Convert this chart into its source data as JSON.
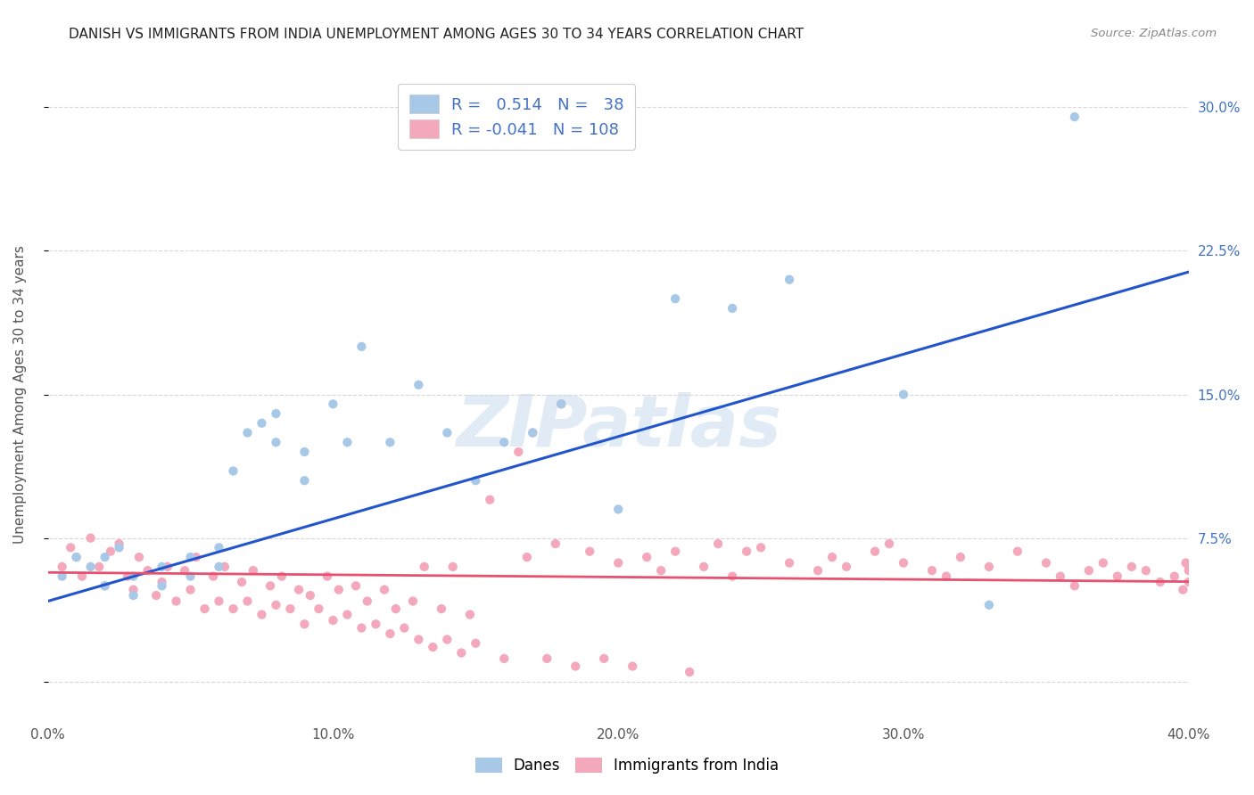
{
  "title": "DANISH VS IMMIGRANTS FROM INDIA UNEMPLOYMENT AMONG AGES 30 TO 34 YEARS CORRELATION CHART",
  "source": "Source: ZipAtlas.com",
  "ylabel": "Unemployment Among Ages 30 to 34 years",
  "xlim": [
    0.0,
    0.4
  ],
  "ylim": [
    -0.02,
    0.32
  ],
  "danes_color": "#a8c8e8",
  "india_color": "#f4a8bc",
  "danes_line_color": "#2255cc",
  "india_line_color": "#e85070",
  "danes_R": 0.514,
  "danes_N": 38,
  "india_R": -0.041,
  "india_N": 108,
  "watermark": "ZIPatlas",
  "background_color": "#ffffff",
  "grid_color": "#d8d8d8",
  "right_tick_color": "#4472c4",
  "danes_scatter_x": [
    0.005,
    0.01,
    0.015,
    0.02,
    0.02,
    0.025,
    0.03,
    0.03,
    0.04,
    0.04,
    0.05,
    0.05,
    0.06,
    0.06,
    0.065,
    0.07,
    0.075,
    0.08,
    0.08,
    0.09,
    0.09,
    0.1,
    0.105,
    0.11,
    0.12,
    0.13,
    0.14,
    0.15,
    0.16,
    0.17,
    0.18,
    0.2,
    0.22,
    0.24,
    0.26,
    0.3,
    0.33,
    0.36
  ],
  "danes_scatter_y": [
    0.055,
    0.065,
    0.06,
    0.05,
    0.065,
    0.07,
    0.045,
    0.055,
    0.06,
    0.05,
    0.055,
    0.065,
    0.07,
    0.06,
    0.11,
    0.13,
    0.135,
    0.125,
    0.14,
    0.12,
    0.105,
    0.145,
    0.125,
    0.175,
    0.125,
    0.155,
    0.13,
    0.105,
    0.125,
    0.13,
    0.145,
    0.09,
    0.2,
    0.195,
    0.21,
    0.15,
    0.04,
    0.295
  ],
  "india_scatter_x": [
    0.005,
    0.008,
    0.01,
    0.012,
    0.015,
    0.018,
    0.02,
    0.022,
    0.025,
    0.028,
    0.03,
    0.032,
    0.035,
    0.038,
    0.04,
    0.042,
    0.045,
    0.048,
    0.05,
    0.052,
    0.055,
    0.058,
    0.06,
    0.062,
    0.065,
    0.068,
    0.07,
    0.072,
    0.075,
    0.078,
    0.08,
    0.082,
    0.085,
    0.088,
    0.09,
    0.092,
    0.095,
    0.098,
    0.1,
    0.102,
    0.105,
    0.108,
    0.11,
    0.112,
    0.115,
    0.118,
    0.12,
    0.122,
    0.125,
    0.128,
    0.13,
    0.132,
    0.135,
    0.138,
    0.14,
    0.142,
    0.145,
    0.148,
    0.15,
    0.155,
    0.16,
    0.165,
    0.168,
    0.17,
    0.175,
    0.178,
    0.18,
    0.185,
    0.19,
    0.195,
    0.2,
    0.205,
    0.21,
    0.215,
    0.22,
    0.225,
    0.23,
    0.235,
    0.24,
    0.245,
    0.25,
    0.26,
    0.27,
    0.275,
    0.28,
    0.29,
    0.295,
    0.3,
    0.31,
    0.315,
    0.32,
    0.33,
    0.34,
    0.35,
    0.355,
    0.36,
    0.365,
    0.37,
    0.375,
    0.38,
    0.385,
    0.39,
    0.395,
    0.398,
    0.399,
    0.4,
    0.4,
    0.4
  ],
  "india_scatter_y": [
    0.06,
    0.07,
    0.065,
    0.055,
    0.075,
    0.06,
    0.05,
    0.068,
    0.072,
    0.055,
    0.048,
    0.065,
    0.058,
    0.045,
    0.052,
    0.06,
    0.042,
    0.058,
    0.048,
    0.065,
    0.038,
    0.055,
    0.042,
    0.06,
    0.038,
    0.052,
    0.042,
    0.058,
    0.035,
    0.05,
    0.04,
    0.055,
    0.038,
    0.048,
    0.03,
    0.045,
    0.038,
    0.055,
    0.032,
    0.048,
    0.035,
    0.05,
    0.028,
    0.042,
    0.03,
    0.048,
    0.025,
    0.038,
    0.028,
    0.042,
    0.022,
    0.06,
    0.018,
    0.038,
    0.022,
    0.06,
    0.015,
    0.035,
    0.02,
    0.095,
    0.012,
    0.12,
    0.065,
    0.13,
    0.012,
    0.072,
    0.145,
    0.008,
    0.068,
    0.012,
    0.062,
    0.008,
    0.065,
    0.058,
    0.068,
    0.005,
    0.06,
    0.072,
    0.055,
    0.068,
    0.07,
    0.062,
    0.058,
    0.065,
    0.06,
    0.068,
    0.072,
    0.062,
    0.058,
    0.055,
    0.065,
    0.06,
    0.068,
    0.062,
    0.055,
    0.05,
    0.058,
    0.062,
    0.055,
    0.06,
    0.058,
    0.052,
    0.055,
    0.048,
    0.062,
    0.058,
    0.052,
    0.06
  ]
}
